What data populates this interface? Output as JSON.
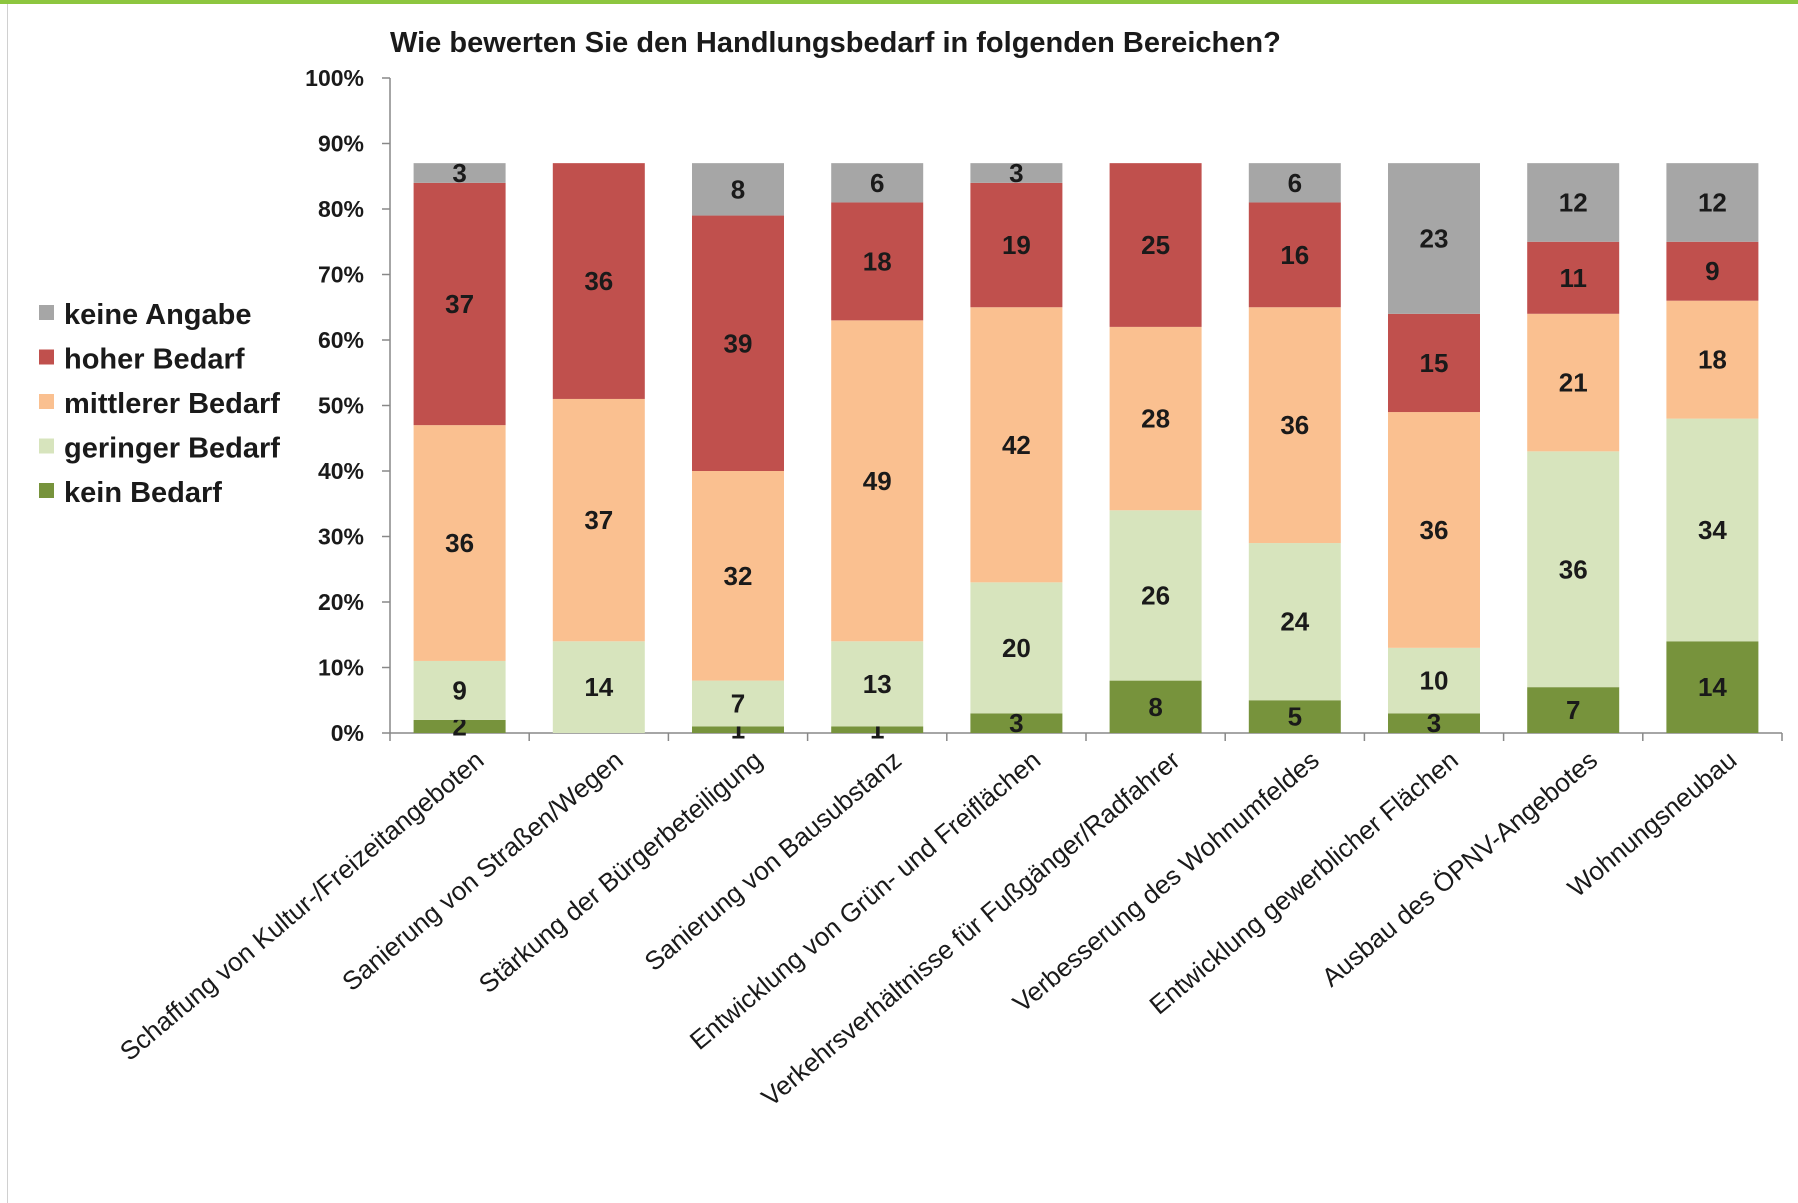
{
  "chart_data": {
    "type": "bar",
    "stacked": true,
    "percent_stacked": true,
    "title": "Wie bewerten Sie den Handlungsbedarf in folgenden Bereichen?",
    "categories": [
      "Schaffung von Kultur-/Freizeitangeboten",
      "Sanierung von Straßen/Wegen",
      "Stärkung der Bürgerbeteiligung",
      "Sanierung von Bausubstanz",
      "Entwicklung von Grün- und Freiflächen",
      "Verkehrsverhältnisse für Fußgänger/Radfahrer",
      "Verbesserung des Wohnumfeldes",
      "Entwicklung gewerblicher Flächen",
      "Ausbau des ÖPNV-Angebotes",
      "Wohnungsneubau"
    ],
    "series": [
      {
        "name": "kein Bedarf",
        "color": "#77933c",
        "values": [
          2,
          0,
          1,
          1,
          3,
          8,
          5,
          3,
          7,
          14
        ]
      },
      {
        "name": "geringer Bedarf",
        "color": "#d7e4bd",
        "values": [
          9,
          14,
          7,
          13,
          20,
          26,
          24,
          10,
          36,
          34
        ]
      },
      {
        "name": "mittlerer Bedarf",
        "color": "#fac090",
        "values": [
          36,
          37,
          32,
          49,
          42,
          28,
          36,
          36,
          21,
          18
        ]
      },
      {
        "name": "hoher Bedarf",
        "color": "#c0504d",
        "values": [
          37,
          36,
          39,
          18,
          19,
          25,
          16,
          15,
          11,
          9
        ]
      },
      {
        "name": "keine Angabe",
        "color": "#a6a6a6",
        "values": [
          3,
          0,
          8,
          6,
          3,
          0,
          6,
          23,
          12,
          12
        ]
      }
    ],
    "legend_order": [
      "keine Angabe",
      "hoher Bedarf",
      "mittlerer Bedarf",
      "geringer Bedarf",
      "kein Bedarf"
    ],
    "legend_position": "left",
    "y_ticks": [
      "0%",
      "10%",
      "20%",
      "30%",
      "40%",
      "50%",
      "60%",
      "70%",
      "80%",
      "90%",
      "100%"
    ],
    "ylim": [
      0,
      100
    ],
    "grid": false
  }
}
